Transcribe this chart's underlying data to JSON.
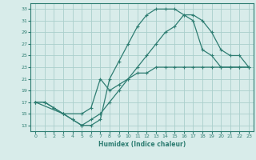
{
  "xlabel": "Humidex (Indice chaleur)",
  "bg_color": "#d8ecea",
  "grid_color": "#aacfcc",
  "line_color": "#2e7d72",
  "xlim": [
    -0.5,
    23.5
  ],
  "ylim": [
    12.0,
    34.0
  ],
  "xticks": [
    0,
    1,
    2,
    3,
    4,
    5,
    6,
    7,
    8,
    9,
    10,
    11,
    12,
    13,
    14,
    15,
    16,
    17,
    18,
    19,
    20,
    21,
    22,
    23
  ],
  "yticks": [
    13,
    15,
    17,
    19,
    21,
    23,
    25,
    27,
    29,
    31,
    33
  ],
  "line1_x": [
    0,
    1,
    2,
    3,
    4,
    5,
    6,
    7,
    8,
    9,
    10,
    11,
    12,
    13,
    14,
    15,
    16,
    17,
    18,
    19,
    20,
    21,
    22,
    23
  ],
  "line1_y": [
    17,
    17,
    16,
    15,
    14,
    13,
    13,
    14,
    21,
    24,
    27,
    30,
    32,
    33,
    33,
    33,
    32,
    31,
    26,
    25,
    23,
    23,
    23,
    23
  ],
  "line2_x": [
    0,
    1,
    2,
    3,
    4,
    5,
    6,
    7,
    8,
    9,
    10,
    11,
    12,
    13,
    14,
    15,
    16,
    17,
    18,
    19,
    20,
    21,
    22,
    23
  ],
  "line2_y": [
    17,
    17,
    16,
    15,
    14,
    13,
    14,
    15,
    17,
    19,
    21,
    23,
    25,
    27,
    29,
    30,
    32,
    32,
    31,
    29,
    26,
    25,
    25,
    23
  ],
  "line3_x": [
    0,
    3,
    5,
    6,
    7,
    8,
    9,
    10,
    11,
    12,
    13,
    14,
    15,
    16,
    17,
    18,
    19,
    20,
    21,
    22,
    23
  ],
  "line3_y": [
    17,
    15,
    15,
    16,
    21,
    19,
    20,
    21,
    22,
    22,
    23,
    23,
    23,
    23,
    23,
    23,
    23,
    23,
    23,
    23,
    23
  ]
}
